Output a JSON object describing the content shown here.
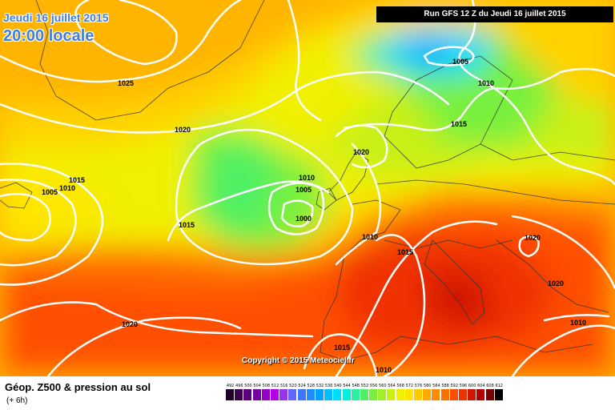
{
  "header": {
    "date": "Jeudi 16 juillet 2015",
    "time": "20:00 locale",
    "run": "Run GFS 12 Z du Jeudi 16 juillet 2015"
  },
  "copyright": "Copyright © 2015 Meteociel.fr",
  "legend": {
    "title": "Géop. Z500 & pression au sol",
    "subtitle": "(+ 6h)",
    "scale": [
      {
        "value": "492",
        "color": "#1e0028"
      },
      {
        "value": "496",
        "color": "#3c0050"
      },
      {
        "value": "500",
        "color": "#5a0078"
      },
      {
        "value": "504",
        "color": "#7800a0"
      },
      {
        "value": "508",
        "color": "#9600c8"
      },
      {
        "value": "512",
        "color": "#b400e6"
      },
      {
        "value": "516",
        "color": "#9632f0"
      },
      {
        "value": "520",
        "color": "#6464ff"
      },
      {
        "value": "524",
        "color": "#3c78ff"
      },
      {
        "value": "528",
        "color": "#1e8cff"
      },
      {
        "value": "532",
        "color": "#00a0ff"
      },
      {
        "value": "536",
        "color": "#00beff"
      },
      {
        "value": "540",
        "color": "#00dcff"
      },
      {
        "value": "544",
        "color": "#00f0dc"
      },
      {
        "value": "548",
        "color": "#28f0a0"
      },
      {
        "value": "552",
        "color": "#50f064"
      },
      {
        "value": "556",
        "color": "#78f03c"
      },
      {
        "value": "560",
        "color": "#a0f028"
      },
      {
        "value": "564",
        "color": "#c8f014"
      },
      {
        "value": "568",
        "color": "#f0f000"
      },
      {
        "value": "572",
        "color": "#ffe600"
      },
      {
        "value": "576",
        "color": "#ffc800"
      },
      {
        "value": "580",
        "color": "#ffaa00"
      },
      {
        "value": "584",
        "color": "#ff8c00"
      },
      {
        "value": "588",
        "color": "#ff6e00"
      },
      {
        "value": "592",
        "color": "#ff5000"
      },
      {
        "value": "596",
        "color": "#f03200"
      },
      {
        "value": "600",
        "color": "#d21400"
      },
      {
        "value": "604",
        "color": "#b40000"
      },
      {
        "value": "608",
        "color": "#780000"
      },
      {
        "value": "612",
        "color": "#000000"
      }
    ]
  },
  "isobars": {
    "l1025": "1025",
    "l1020_north": "1020",
    "l1020_nsea": "1020",
    "l1020_balkan": "1020",
    "l1020_east": "1020",
    "l1020_sw": "1020",
    "l1015_west": "1015",
    "l1015_atl": "1015",
    "l1015_scand": "1015",
    "l1015_france": "1015",
    "l1015_south": "1015",
    "l1010_west": "1010",
    "l1010_scot": "1010",
    "l1010_norway": "1010",
    "l1010_bay": "1010",
    "l1010_east": "1010",
    "l1010_bottom": "1010",
    "l1005_west": "1005",
    "l1005_low": "1005",
    "l1005_icel": "1005",
    "l1000": "1000"
  }
}
